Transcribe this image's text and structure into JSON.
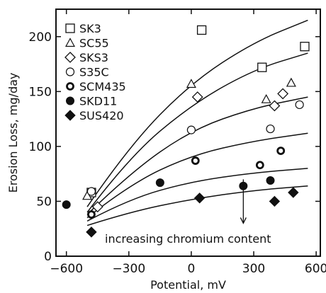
{
  "chart_data": {
    "type": "scatter",
    "xlabel": "Potential, mV",
    "ylabel": "Erosion Loss, mg/day",
    "xlim": [
      -650,
      620
    ],
    "ylim": [
      0,
      225
    ],
    "xticks": [
      -600,
      -300,
      0,
      300,
      600
    ],
    "yticks": [
      0,
      50,
      100,
      150,
      200
    ],
    "legend_position": "top-left",
    "annotation": "increasing chromium content",
    "series": [
      {
        "name": "SK3",
        "marker": "square-open",
        "points": [
          [
            -480,
            58
          ],
          [
            50,
            206
          ],
          [
            340,
            172
          ],
          [
            545,
            191
          ]
        ]
      },
      {
        "name": "SC55",
        "marker": "triangle-open",
        "points": [
          [
            -500,
            55
          ],
          [
            0,
            157
          ],
          [
            360,
            143
          ],
          [
            480,
            158
          ]
        ]
      },
      {
        "name": "SKS3",
        "marker": "diamond-open",
        "points": [
          [
            -450,
            45
          ],
          [
            30,
            145
          ],
          [
            440,
            148
          ],
          [
            400,
            137
          ]
        ]
      },
      {
        "name": "S35C",
        "marker": "circle-open",
        "points": [
          [
            -480,
            59
          ],
          [
            0,
            115
          ],
          [
            380,
            116
          ],
          [
            520,
            138
          ]
        ]
      },
      {
        "name": "SCM435",
        "marker": "circle-thick",
        "points": [
          [
            -480,
            38
          ],
          [
            20,
            87
          ],
          [
            330,
            83
          ],
          [
            430,
            96
          ]
        ]
      },
      {
        "name": "SKD11",
        "marker": "circle-filled",
        "points": [
          [
            -600,
            47
          ],
          [
            -150,
            67
          ],
          [
            250,
            64
          ],
          [
            380,
            69
          ]
        ]
      },
      {
        "name": "SUS420",
        "marker": "diamond-filled",
        "points": [
          [
            -480,
            22
          ],
          [
            40,
            53
          ],
          [
            400,
            50
          ],
          [
            490,
            58
          ]
        ]
      }
    ],
    "curves": [
      [
        [
          -500,
          45
        ],
        [
          -300,
          100
        ],
        [
          0,
          158
        ],
        [
          300,
          195
        ],
        [
          560,
          215
        ]
      ],
      [
        [
          -500,
          40
        ],
        [
          -300,
          90
        ],
        [
          0,
          138
        ],
        [
          300,
          170
        ],
        [
          560,
          185
        ]
      ],
      [
        [
          -500,
          38
        ],
        [
          -300,
          75
        ],
        [
          0,
          115
        ],
        [
          300,
          135
        ],
        [
          560,
          145
        ]
      ],
      [
        [
          -500,
          35
        ],
        [
          -300,
          65
        ],
        [
          0,
          92
        ],
        [
          300,
          105
        ],
        [
          560,
          112
        ]
      ],
      [
        [
          -500,
          32
        ],
        [
          -300,
          52
        ],
        [
          0,
          68
        ],
        [
          300,
          76
        ],
        [
          560,
          80
        ]
      ],
      [
        [
          -500,
          28
        ],
        [
          -300,
          40
        ],
        [
          0,
          52
        ],
        [
          300,
          60
        ],
        [
          560,
          64
        ]
      ]
    ],
    "arrow": {
      "x": 250,
      "y_from": 70,
      "y_to": 30
    }
  }
}
